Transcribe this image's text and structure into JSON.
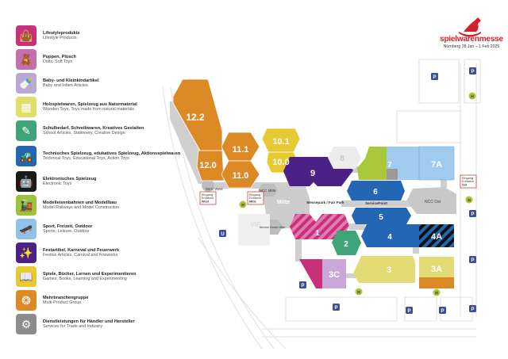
{
  "legend": [
    {
      "de": "Lifestyleprodukte",
      "en": "Lifestyle Products",
      "color": "#c8307a",
      "icon": "handbag-icon"
    },
    {
      "de": "Puppen, Plüsch",
      "en": "Dolls, Soft Toys",
      "color": "#c46fb0",
      "icon": "teddy-bear-icon"
    },
    {
      "de": "Baby- und Kleinkindartikel",
      "en": "Baby and Infant Articles",
      "color": "#b9a7d6",
      "icon": "baby-bottle-icon"
    },
    {
      "de": "Holzspielwaren, Spielzeug aus Naturmaterial",
      "en": "Wooden Toys, Toys made from natural materials",
      "color": "#e2de6a",
      "icon": "wooden-blocks-icon"
    },
    {
      "de": "Schulbedarf, Schreibwaren, Kreatives Gestalten",
      "en": "School Articles, Stationery, Creative Design",
      "color": "#3fa47a",
      "icon": "pencil-icon"
    },
    {
      "de": "Technisches Spielzeug, edukatives Spielzeug, Aktionsspielwaren",
      "en": "Technical Toys, Educational Toys, Action Toys",
      "color": "#2366b3",
      "icon": "excavator-icon"
    },
    {
      "de": "Elektronisches Spielzeug",
      "en": "Electronic Toys",
      "color": "#1a1a1a",
      "icon": "robot-icon"
    },
    {
      "de": "Modelleisenbahnen und Modellbau",
      "en": "Model Railways and Model Construction",
      "color": "#9cc33b",
      "icon": "train-icon"
    },
    {
      "de": "Sport, Freizeit, Outdoor",
      "en": "Sports, Leisure, Outdoor",
      "color": "#8fc3ea",
      "icon": "skateboard-icon"
    },
    {
      "de": "Festartikel, Karneval und Feuerwerk",
      "en": "Festive Articles, Carnival and Fireworks",
      "color": "#4b2185",
      "icon": "fireworks-icon"
    },
    {
      "de": "Spiele, Bücher, Lernen und Experimentieren",
      "en": "Games, Books, Learning and Experimenting",
      "color": "#e7c932",
      "icon": "book-icon"
    },
    {
      "de": "Mehrbranchengruppe",
      "en": "Multi-Product Group",
      "color": "#dc8a26",
      "icon": "multi-product-icon"
    },
    {
      "de": "Dienstleistungen für Händler und Hersteller",
      "en": "Services for Trade and Industry",
      "color": "#8c8c8c",
      "icon": "gear-wrench-icon"
    }
  ],
  "brand": {
    "name": "spielwarenmesse",
    "date": "Nürnberg 28 Jan – 1 Feb 2025",
    "logo": "rocking-horse-logo",
    "color": "#d2232a"
  },
  "halls": {
    "h12_2": "12.2",
    "h12_0": "12.0",
    "h11_1": "11.1",
    "h11_0": "11.0",
    "h10_1": "10.1",
    "h10_0": "10.0",
    "h9": "9",
    "h8": "8",
    "h7": "7",
    "h7a": "7A",
    "h6": "6",
    "h5": "5",
    "h4": "4",
    "h4a": "4A",
    "h1": "1",
    "h2": "2",
    "h3": "3",
    "h3a": "3A",
    "h3c": "3C"
  },
  "labels": {
    "ncc_west": "NCC West",
    "ncc_mitte": "NCC Mitte",
    "ncc_ost": "NCC Ost",
    "mitte": "Mitte",
    "vip": "VIP",
    "messepark": "Messepark / Fair Park",
    "servicepoint": "ServicePoint",
    "service_center": "Service Center Mitte",
    "entrance_west": [
      "Eingang",
      "Entrance",
      "West"
    ],
    "entrance_mitte": [
      "Eingang",
      "Entrance",
      "Mitte"
    ],
    "entrance_ost": [
      "Eingang",
      "Entrance",
      "Ost"
    ]
  }
}
